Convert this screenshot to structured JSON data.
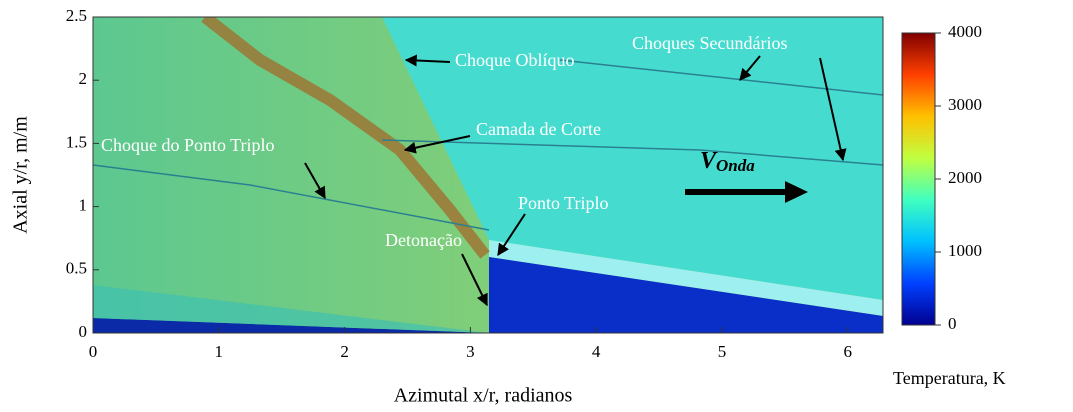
{
  "chart_data": {
    "type": "contour",
    "xlabel": "Azimutal x/r, radianos",
    "ylabel": "Axial y/r, m/m",
    "xlim": [
      0,
      6.28
    ],
    "ylim": [
      0,
      2.5
    ],
    "xticks": [
      0,
      1,
      2,
      3,
      4,
      5,
      6
    ],
    "yticks": [
      0,
      0.5,
      1,
      1.5,
      2,
      2.5
    ],
    "colorbar": {
      "label": "Temperatura, K",
      "clim": [
        0,
        4000
      ],
      "ticks": [
        0,
        1000,
        2000,
        3000,
        4000
      ],
      "colors": [
        "#00008f",
        "#0040ff",
        "#00c0ff",
        "#40ffc0",
        "#c0ff40",
        "#ffc000",
        "#ff4000",
        "#800000"
      ]
    },
    "annotations": [
      "Choque Oblíquo",
      "Choques Secundários",
      "Camada de Corte",
      "Choque do Ponto Triplo",
      "Ponto Triplo",
      "Detonação"
    ],
    "velocity_label": {
      "symbol": "V",
      "subscript": "Onda"
    }
  }
}
